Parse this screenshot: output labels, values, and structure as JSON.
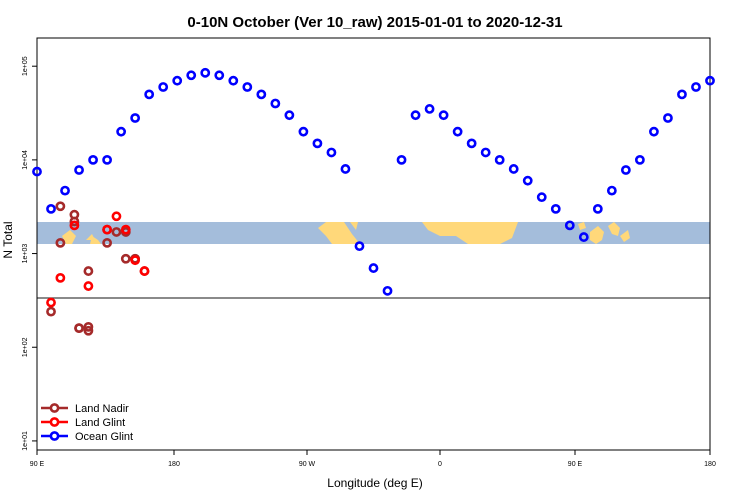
{
  "chart_data": {
    "type": "scatter",
    "title": "0-10N October (Ver 10_raw)   2015-01-01 to 2020-12-31",
    "xlabel": "Longitude (deg E)",
    "ylabel": "N Total",
    "y_scale": "log",
    "xlim": [
      90,
      450
    ],
    "ylim": [
      8,
      200000
    ],
    "x_ticks": [
      {
        "value": 90,
        "label": "90 E"
      },
      {
        "value": 180,
        "label": "180"
      },
      {
        "value": 270,
        "label": "90 W"
      },
      {
        "value": 360,
        "label": "0"
      },
      {
        "value": 450,
        "label": "90 E"
      },
      {
        "value": 540,
        "label": "180"
      }
    ],
    "y_ticks": [
      {
        "value": 10,
        "label": "1e+01"
      },
      {
        "value": 100,
        "label": "1e+02"
      },
      {
        "value": 1000,
        "label": "1e+03"
      },
      {
        "value": 10000,
        "label": "1e+04"
      },
      {
        "value": 100000,
        "label": "1e+05"
      }
    ],
    "colors": {
      "land_nadir": "#a52a2a",
      "land_glint": "#ff0000",
      "ocean_glint": "#0000ff",
      "land_band": "#a4bddb",
      "land_fill": "#ffd87a"
    },
    "legend_position": "bottom-left",
    "series": [
      {
        "name": "Land Nadir",
        "key": "land_nadir",
        "x": [
          97.5,
          102.5,
          117.5,
          110,
          102.5,
          110,
          127.5,
          132.5,
          137.5,
          112.5,
          117.5,
          112.5,
          117.5,
          127.5,
          137.5,
          142.5,
          147.5
        ],
        "y": [
          240,
          1300,
          650,
          2200,
          3200,
          2600,
          1800,
          1700,
          880,
          160,
          165,
          160,
          150,
          1300,
          1700,
          880,
          650
        ]
      },
      {
        "name": "Land Glint",
        "key": "land_glint",
        "x": [
          97.5,
          117.5,
          102.5,
          110,
          127.5,
          132.5,
          137.5,
          142.5,
          147.5
        ],
        "y": [
          300,
          450,
          550,
          2000,
          1800,
          2500,
          1800,
          850,
          650
        ]
      },
      {
        "name": "Ocean Glint",
        "key": "ocean_glint",
        "x": [
          90,
          97.5,
          105,
          112.5,
          120,
          127.5,
          135,
          142.5,
          150,
          157.5,
          165,
          172.5,
          180,
          187.5,
          195,
          202.5,
          210,
          217.5,
          225,
          232.5,
          240,
          247.5,
          255,
          262.5,
          270,
          277.5,
          285,
          292.5,
          300,
          307.5,
          315,
          322.5,
          330,
          337.5,
          345,
          352.5,
          360,
          367.5,
          375,
          382.5,
          390,
          397.5,
          405,
          412.5,
          420,
          427.5,
          435,
          442.5,
          450
        ],
        "y": [
          7500,
          3000,
          4700,
          7800,
          10000,
          10000,
          20000,
          28000,
          50000,
          60000,
          70000,
          80000,
          85000,
          80000,
          70000,
          60000,
          50000,
          40000,
          30000,
          20000,
          15000,
          12000,
          8000,
          1200,
          700,
          400,
          10000,
          30000,
          35000,
          30000,
          20000,
          15000,
          12000,
          10000,
          8000,
          6000,
          4000,
          3000,
          2000,
          1500,
          3000,
          4700,
          7800,
          10000,
          20000,
          28000,
          50000,
          60000,
          70000
        ]
      }
    ]
  }
}
